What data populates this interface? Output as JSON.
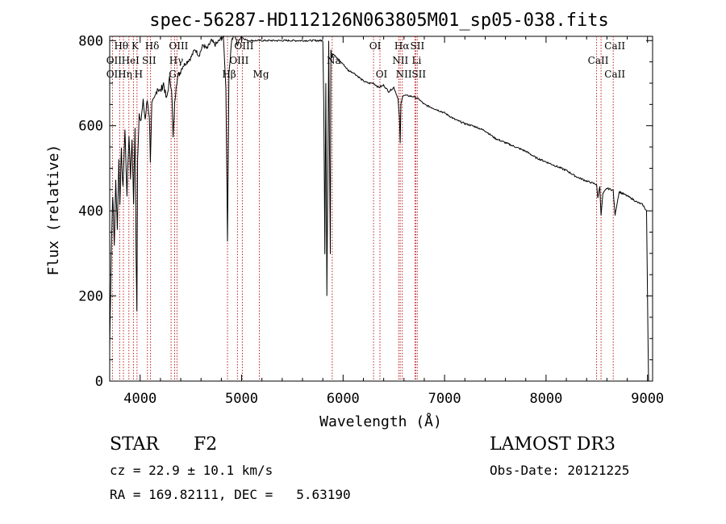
{
  "chart_data": {
    "type": "line",
    "title": "spec-56287-HD112126N063805M01_sp05-038.fits",
    "xlabel": "Wavelength (Å)",
    "ylabel": "Flux (relative)",
    "xlim": [
      3700,
      9050
    ],
    "ylim": [
      0,
      810
    ],
    "x_ticks": [
      4000,
      5000,
      6000,
      7000,
      8000,
      9000
    ],
    "y_ticks": [
      0,
      200,
      400,
      600,
      800
    ],
    "grid": false,
    "series": [
      {
        "name": "flux",
        "x": [
          3700,
          3715,
          3730,
          3745,
          3760,
          3775,
          3790,
          3800,
          3815,
          3830,
          3850,
          3870,
          3890,
          3905,
          3920,
          3935,
          3950,
          3960,
          3968,
          3975,
          3990,
          4010,
          4030,
          4050,
          4070,
          4090,
          4101,
          4115,
          4140,
          4170,
          4200,
          4230,
          4260,
          4290,
          4310,
          4325,
          4340,
          4355,
          4380,
          4420,
          4460,
          4500,
          4540,
          4580,
          4620,
          4660,
          4700,
          4740,
          4780,
          4820,
          4845,
          4861,
          4875,
          4900,
          4930,
          4960,
          4990,
          5020,
          5060,
          5100,
          5150,
          5200,
          5250,
          5300,
          5350,
          5400,
          5450,
          5500,
          5550,
          5600,
          5650,
          5700,
          5740,
          5760,
          5770,
          5780,
          5790,
          5800,
          5810,
          5820,
          5830,
          5840,
          5850,
          5858,
          5866,
          5874,
          5880,
          5890,
          5900,
          5950,
          6000,
          6050,
          6100,
          6150,
          6200,
          6250,
          6300,
          6350,
          6400,
          6450,
          6500,
          6540,
          6555,
          6563,
          6570,
          6590,
          6650,
          6700,
          6750,
          6800,
          6900,
          7000,
          7100,
          7200,
          7300,
          7400,
          7500,
          7600,
          7700,
          7800,
          7900,
          8000,
          8100,
          8200,
          8300,
          8400,
          8498,
          8510,
          8530,
          8542,
          8560,
          8600,
          8640,
          8662,
          8680,
          8720,
          8760,
          8800,
          8850,
          8900,
          8950,
          8990,
          9000,
          9010
        ],
        "y": [
          80,
          300,
          440,
          320,
          470,
          360,
          520,
          420,
          540,
          450,
          590,
          440,
          580,
          480,
          570,
          420,
          600,
          300,
          160,
          520,
          630,
          615,
          655,
          615,
          660,
          625,
          520,
          650,
          660,
          690,
          680,
          700,
          660,
          710,
          690,
          570,
          650,
          700,
          720,
          740,
          750,
          760,
          780,
          765,
          790,
          780,
          800,
          790,
          800,
          810,
          690,
          330,
          720,
          800,
          815,
          790,
          810,
          805,
          800,
          800,
          800,
          800,
          800,
          800,
          800,
          800,
          800,
          800,
          800,
          800,
          800,
          800,
          800,
          800,
          800,
          800,
          800,
          800,
          650,
          300,
          700,
          200,
          500,
          800,
          540,
          300,
          780,
          760,
          770,
          755,
          745,
          730,
          725,
          715,
          705,
          700,
          700,
          690,
          695,
          680,
          690,
          665,
          620,
          560,
          650,
          672,
          670,
          668,
          662,
          650,
          640,
          630,
          615,
          605,
          598,
          588,
          570,
          560,
          550,
          540,
          525,
          515,
          505,
          495,
          480,
          470,
          462,
          430,
          458,
          390,
          440,
          453,
          450,
          448,
          390,
          445,
          440,
          435,
          428,
          420,
          415,
          400,
          200,
          0
        ]
      }
    ],
    "line_labels": [
      {
        "label": "Hθ",
        "x": 3798,
        "row": 0
      },
      {
        "label": "OII",
        "x": 3727,
        "row": 1
      },
      {
        "label": "OII",
        "x": 3727,
        "row": 2
      },
      {
        "label": "Hη",
        "x": 3835,
        "row": 2
      },
      {
        "label": "K",
        "x": 3934,
        "row": 0
      },
      {
        "label": "HeI",
        "x": 3889,
        "row": 1
      },
      {
        "label": "SII",
        "x": 4072,
        "row": 1
      },
      {
        "label": "H",
        "x": 3969,
        "row": 2
      },
      {
        "label": "Hδ",
        "x": 4102,
        "row": 0
      },
      {
        "label": "OIII",
        "x": 4363,
        "row": 0
      },
      {
        "label": "Hγ",
        "x": 4340,
        "row": 1
      },
      {
        "label": "G",
        "x": 4305,
        "row": 2
      },
      {
        "label": "OIII",
        "x": 5007,
        "row": 0
      },
      {
        "label": "OIII",
        "x": 4959,
        "row": 1
      },
      {
        "label": "Hβ",
        "x": 4861,
        "row": 2
      },
      {
        "label": "Mg",
        "x": 5175,
        "row": 2
      },
      {
        "label": "Na",
        "x": 5893,
        "row": 1
      },
      {
        "label": "OI",
        "x": 6300,
        "row": 0
      },
      {
        "label": "OI",
        "x": 6363,
        "row": 2
      },
      {
        "label": "Hα",
        "x": 6563,
        "row": 0
      },
      {
        "label": "SII",
        "x": 6716,
        "row": 0
      },
      {
        "label": "NII",
        "x": 6548,
        "row": 1
      },
      {
        "label": "Li",
        "x": 6708,
        "row": 1
      },
      {
        "label": "NII",
        "x": 6583,
        "row": 2
      },
      {
        "label": "SII",
        "x": 6731,
        "row": 2
      },
      {
        "label": "CaII",
        "x": 8662,
        "row": 0
      },
      {
        "label": "CaII",
        "x": 8498,
        "row": 1
      },
      {
        "label": "CaII",
        "x": 8662,
        "row": 2
      }
    ],
    "line_positions": [
      3727,
      3798,
      3835,
      3889,
      3934,
      3969,
      4072,
      4102,
      4305,
      4340,
      4363,
      4861,
      4959,
      5007,
      5175,
      5893,
      6300,
      6363,
      6548,
      6563,
      6583,
      6708,
      6716,
      6731,
      8498,
      8542,
      8662
    ]
  },
  "info": {
    "object_class": "STAR",
    "subclass": "F2",
    "survey": "LAMOST DR3",
    "cz": "cz = 22.9 ± 10.1 km/s",
    "obs_date": "Obs-Date: 20121225",
    "coords": "RA = 169.82111, DEC =   5.63190"
  },
  "colors": {
    "line_marker": "#c02020",
    "spectrum": "#000000",
    "axes": "#000000"
  }
}
